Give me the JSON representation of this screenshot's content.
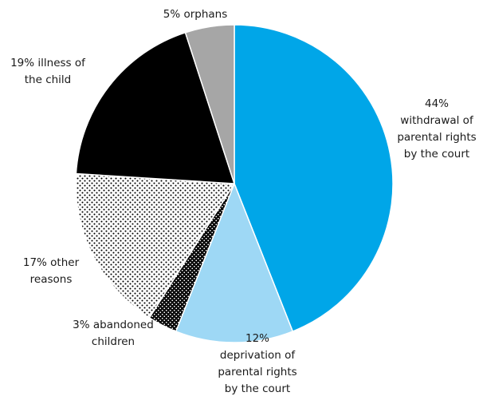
{
  "chart_data": {
    "type": "pie",
    "title": "",
    "start_angle_deg": 0,
    "direction": "clockwise",
    "legend": "none",
    "slices": [
      {
        "value": 44,
        "label_lines": [
          "44%",
          "withdrawal of",
          "parental rights",
          "by the court"
        ],
        "color": "#00A6E8",
        "pattern": "solid"
      },
      {
        "value": 12,
        "label_lines": [
          "12%",
          "deprivation of",
          "parental rights",
          "by the court"
        ],
        "color": "#9ED8F5",
        "pattern": "solid"
      },
      {
        "value": 3,
        "label_lines": [
          "3% abandoned",
          "children"
        ],
        "color": "#000000",
        "pattern": "white-dots-on-black"
      },
      {
        "value": 17,
        "label_lines": [
          "17% other",
          "reasons"
        ],
        "color": "#FFFFFF",
        "pattern": "black-dots-on-white"
      },
      {
        "value": 19,
        "label_lines": [
          "19% illness of",
          "the child"
        ],
        "color": "#000000",
        "pattern": "solid"
      },
      {
        "value": 5,
        "label_lines": [
          "5% orphans"
        ],
        "color": "#A6A6A6",
        "pattern": "solid"
      }
    ]
  }
}
